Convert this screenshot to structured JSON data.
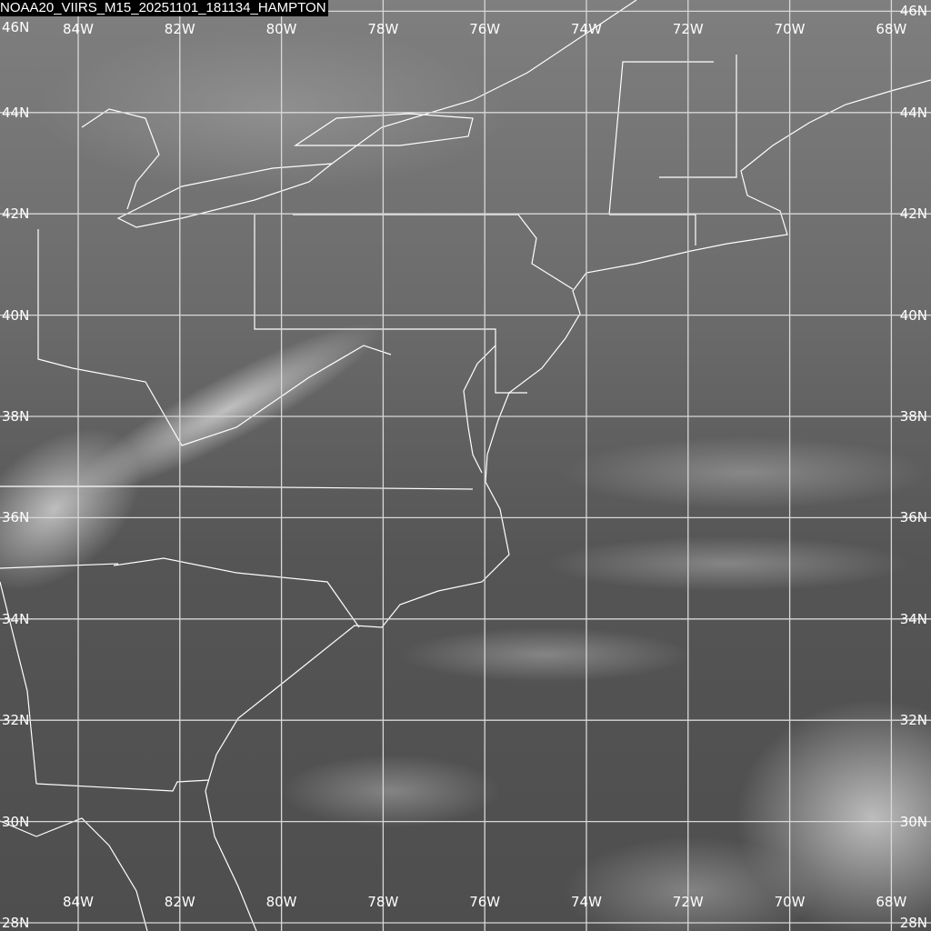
{
  "title": "NOAA20_VIIRS_M15_20251101_181134_HAMPTON",
  "imagery": {
    "satellite": "NOAA20",
    "instrument": "VIIRS",
    "band": "M15",
    "palette": "grayscale"
  },
  "grid": {
    "line_color": "#d8d8d8",
    "longitudes": [
      {
        "value": -84,
        "label": "84W"
      },
      {
        "value": -82,
        "label": "82W"
      },
      {
        "value": -80,
        "label": "80W"
      },
      {
        "value": -78,
        "label": "78W"
      },
      {
        "value": -76,
        "label": "76W"
      },
      {
        "value": -74,
        "label": "74W"
      },
      {
        "value": -72,
        "label": "72W"
      },
      {
        "value": -70,
        "label": "70W"
      },
      {
        "value": -68,
        "label": "68W"
      }
    ],
    "latitudes": [
      {
        "value": 46,
        "label": "46N"
      },
      {
        "value": 44,
        "label": "44N"
      },
      {
        "value": 42,
        "label": "42N"
      },
      {
        "value": 40,
        "label": "40N"
      },
      {
        "value": 38,
        "label": "38N"
      },
      {
        "value": 36,
        "label": "36N"
      },
      {
        "value": 34,
        "label": "34N"
      },
      {
        "value": 32,
        "label": "32N"
      },
      {
        "value": 30,
        "label": "30N"
      },
      {
        "value": 28,
        "label": "28N"
      }
    ]
  },
  "overlay_color": "#ffffff"
}
